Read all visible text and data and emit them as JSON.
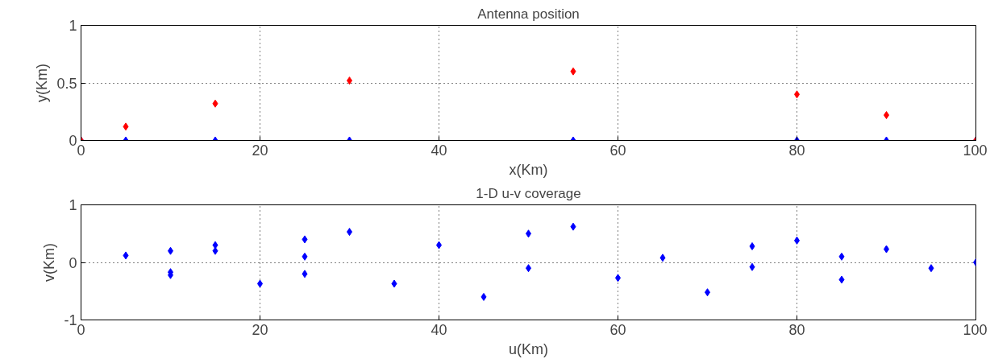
{
  "chart_data": [
    {
      "type": "scatter",
      "title": "Antenna position",
      "xlabel": "x(Km)",
      "ylabel": "y(Km)",
      "xlim": [
        0,
        100
      ],
      "ylim": [
        0,
        1
      ],
      "xticks": [
        0,
        20,
        40,
        60,
        80,
        100
      ],
      "yticks": [
        0,
        0.5,
        1
      ],
      "grid": true,
      "marker": "diamond",
      "series": [
        {
          "color": "#0000ff",
          "x": [
            0,
            5,
            15,
            30,
            55,
            80,
            90,
            100
          ],
          "values": [
            0,
            0,
            0,
            0,
            0,
            0,
            0,
            0
          ]
        },
        {
          "color": "#ff0000",
          "x": [
            0,
            5,
            15,
            30,
            55,
            80,
            90,
            100
          ],
          "values": [
            0,
            0.12,
            0.32,
            0.52,
            0.6,
            0.4,
            0.22,
            0
          ]
        }
      ]
    },
    {
      "type": "scatter",
      "title": "1-D u-v coverage",
      "xlabel": "u(Km)",
      "ylabel": "v(Km)",
      "xlim": [
        0,
        100
      ],
      "ylim": [
        -1,
        1
      ],
      "xticks": [
        0,
        20,
        40,
        60,
        80,
        100
      ],
      "yticks": [
        -1,
        0,
        1
      ],
      "grid": true,
      "marker": "diamond",
      "series": [
        {
          "color": "#0000ff",
          "x": [
            5,
            10,
            10,
            10,
            15,
            15,
            20,
            25,
            25,
            25,
            30,
            35,
            40,
            45,
            50,
            50,
            55,
            60,
            65,
            70,
            75,
            75,
            80,
            85,
            85,
            90,
            95,
            100
          ],
          "values": [
            0.12,
            0.2,
            -0.17,
            -0.22,
            0.3,
            0.2,
            -0.37,
            0.4,
            0.1,
            -0.2,
            0.53,
            -0.37,
            0.3,
            -0.6,
            0.5,
            -0.1,
            0.62,
            -0.27,
            0.08,
            -0.52,
            0.28,
            -0.08,
            0.38,
            0.1,
            -0.3,
            0.23,
            -0.1,
            0
          ]
        }
      ]
    }
  ]
}
